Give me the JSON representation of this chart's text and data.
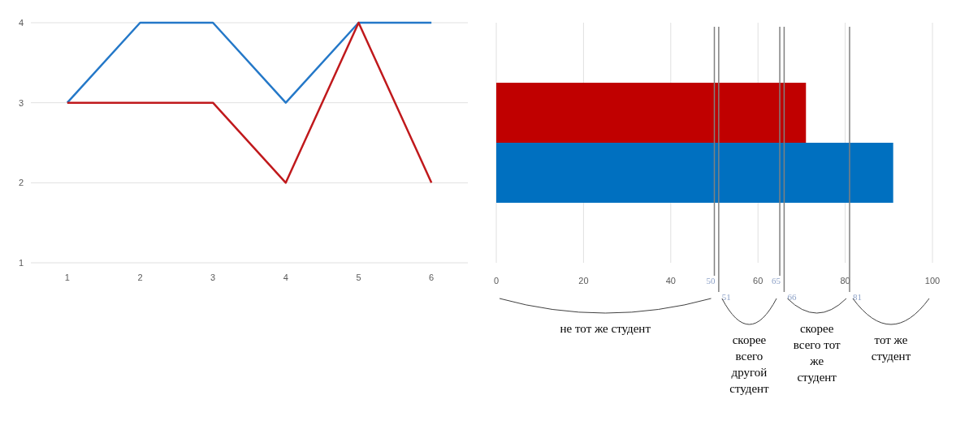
{
  "chart_data": [
    {
      "type": "line",
      "categories": [
        "1",
        "2",
        "3",
        "4",
        "5",
        "6"
      ],
      "series": [
        {
          "color": "#2478c8",
          "values": [
            3,
            4,
            4,
            3,
            4,
            4
          ]
        },
        {
          "color": "#c0191c",
          "values": [
            3,
            3,
            3,
            2,
            4,
            2
          ]
        }
      ],
      "ylim": [
        1,
        4
      ],
      "yticks": [
        1,
        2,
        3,
        4
      ],
      "grid": "y",
      "marker": "none",
      "line_style": "solid"
    },
    {
      "type": "bar",
      "orientation": "horizontal",
      "categories": [
        null
      ],
      "series": [
        {
          "color": "#c00000",
          "values": [
            71
          ]
        },
        {
          "color": "#0070c0",
          "values": [
            91
          ]
        }
      ],
      "xlim": [
        0,
        100
      ],
      "xticks": [
        0,
        20,
        40,
        60,
        80,
        100
      ],
      "grid": "x",
      "ref_lines": [
        {
          "axis": "x",
          "value": 50,
          "label": "50",
          "color": "#808080"
        },
        {
          "axis": "x",
          "value": 51,
          "label": "51",
          "color": "#808080"
        },
        {
          "axis": "x",
          "value": 65,
          "label": "65",
          "color": "#808080"
        },
        {
          "axis": "x",
          "value": 66,
          "label": "66",
          "color": "#808080"
        },
        {
          "axis": "x",
          "value": 81,
          "label": "81",
          "color": "#808080"
        }
      ],
      "annotations": [
        "не тот же студент",
        "скорее всего другой студент",
        "скорее всего тот же студент",
        "тот же студент"
      ]
    }
  ]
}
